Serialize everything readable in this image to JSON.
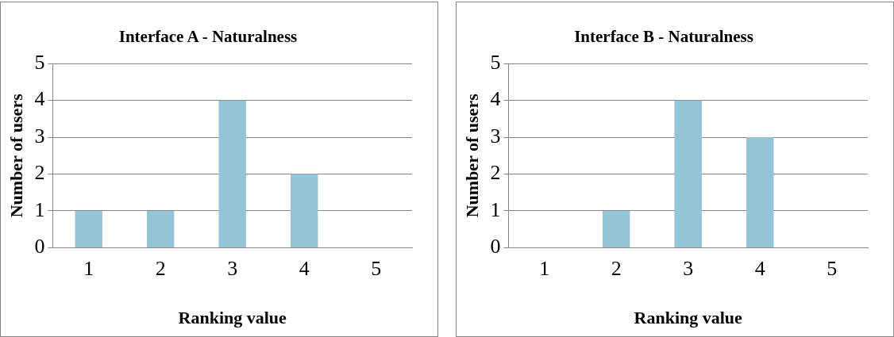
{
  "chart_data": [
    {
      "type": "bar",
      "title": "Interface A - Naturalness",
      "xlabel": "Ranking value",
      "ylabel": "Number of users",
      "categories": [
        "1",
        "2",
        "3",
        "4",
        "5"
      ],
      "values": [
        1,
        1,
        4,
        2,
        0
      ],
      "color": "#93c4d7",
      "ylim": [
        0,
        5
      ],
      "yticks": [
        0,
        1,
        2,
        3,
        4,
        5
      ],
      "grid": "y",
      "legend": false
    },
    {
      "type": "bar",
      "title": "Interface B - Naturalness",
      "xlabel": "Ranking value",
      "ylabel": "Number of users",
      "categories": [
        "1",
        "2",
        "3",
        "4",
        "5"
      ],
      "values": [
        0,
        1,
        4,
        3,
        0
      ],
      "color": "#93c4d7",
      "ylim": [
        0,
        5
      ],
      "yticks": [
        0,
        1,
        2,
        3,
        4,
        5
      ],
      "grid": "y",
      "legend": false
    }
  ]
}
